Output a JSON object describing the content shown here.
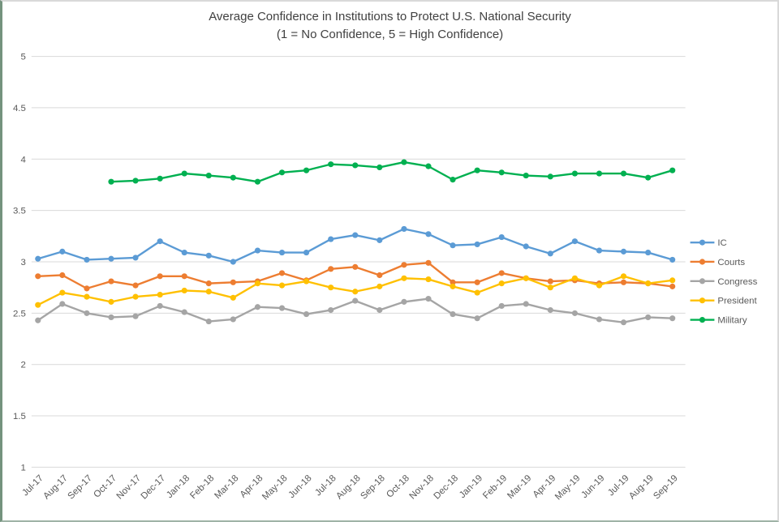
{
  "chart_data": {
    "type": "line",
    "title": "Average Confidence in Institutions to Protect U.S. National Security",
    "subtitle": "(1 = No Confidence, 5 = High Confidence)",
    "categories": [
      "Jul-17",
      "Aug-17",
      "Sep-17",
      "Oct-17",
      "Nov-17",
      "Dec-17",
      "Jan-18",
      "Feb-18",
      "Mar-18",
      "Apr-18",
      "May-18",
      "Jun-18",
      "Jul-18",
      "Aug-18",
      "Sep-18",
      "Oct-18",
      "Nov-18",
      "Dec-18",
      "Jan-19",
      "Feb-19",
      "Mar-19",
      "Apr-19",
      "May-19",
      "Jun-19",
      "Jul-19",
      "Aug-19",
      "Sep-19"
    ],
    "series": [
      {
        "name": "IC",
        "color": "#5B9BD5",
        "values": [
          3.03,
          3.1,
          3.02,
          3.03,
          3.04,
          3.2,
          3.09,
          3.06,
          3.0,
          3.11,
          3.09,
          3.09,
          3.22,
          3.26,
          3.21,
          3.32,
          3.27,
          3.16,
          3.17,
          3.24,
          3.15,
          3.08,
          3.2,
          3.11,
          3.1,
          3.09,
          3.02
        ]
      },
      {
        "name": "Courts",
        "color": "#ED7D31",
        "values": [
          2.86,
          2.87,
          2.74,
          2.81,
          2.77,
          2.86,
          2.86,
          2.79,
          2.8,
          2.81,
          2.89,
          2.82,
          2.93,
          2.95,
          2.87,
          2.97,
          2.99,
          2.8,
          2.8,
          2.89,
          2.84,
          2.81,
          2.82,
          2.79,
          2.8,
          2.79,
          2.76
        ]
      },
      {
        "name": "Congress",
        "color": "#A5A5A5",
        "values": [
          2.43,
          2.59,
          2.5,
          2.46,
          2.47,
          2.57,
          2.51,
          2.42,
          2.44,
          2.56,
          2.55,
          2.49,
          2.53,
          2.62,
          2.53,
          2.61,
          2.64,
          2.49,
          2.45,
          2.57,
          2.59,
          2.53,
          2.5,
          2.44,
          2.41,
          2.46,
          2.45
        ]
      },
      {
        "name": "President",
        "color": "#FFC000",
        "values": [
          2.58,
          2.7,
          2.66,
          2.61,
          2.66,
          2.68,
          2.72,
          2.71,
          2.65,
          2.79,
          2.77,
          2.81,
          2.75,
          2.71,
          2.76,
          2.84,
          2.83,
          2.76,
          2.7,
          2.79,
          2.84,
          2.75,
          2.84,
          2.77,
          2.86,
          2.79,
          2.82
        ]
      },
      {
        "name": "Military",
        "color": "#00B050",
        "values": [
          null,
          null,
          null,
          3.78,
          3.79,
          3.81,
          3.86,
          3.84,
          3.82,
          3.78,
          3.87,
          3.89,
          3.95,
          3.94,
          3.92,
          3.97,
          3.93,
          3.8,
          3.89,
          3.87,
          3.84,
          3.83,
          3.86,
          3.86,
          3.86,
          3.82,
          3.89
        ]
      }
    ],
    "ylim": [
      1,
      5
    ],
    "ytick_step": 0.5,
    "grid": true,
    "legend_position": "right",
    "marker": "circle",
    "x_label_rotation": -45
  },
  "style_colors": {
    "gridline": "#d9d9d9",
    "tick_text": "#595959",
    "legend_text": "#595959",
    "title_text": "#404040"
  }
}
